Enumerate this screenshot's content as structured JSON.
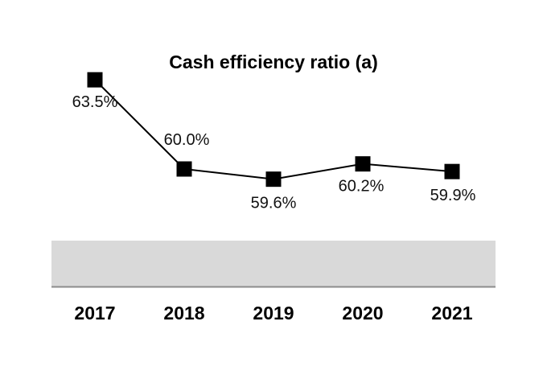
{
  "chart_data": {
    "type": "line",
    "title": "Cash efficiency ratio (a)",
    "xlabel": "",
    "ylabel": "",
    "categories": [
      "2017",
      "2018",
      "2019",
      "2020",
      "2021"
    ],
    "series": [
      {
        "values": [
          63.5,
          60.0,
          59.6,
          60.2,
          59.9
        ],
        "labels": [
          "63.5%",
          "60.0%",
          "59.6%",
          "60.2%",
          "59.9%"
        ]
      }
    ],
    "ylim": [
      54.0,
      66.0
    ],
    "marker": "square",
    "grid": false,
    "legend": "none",
    "colors": {
      "line": "#000000",
      "marker": "#000000",
      "band": "#d9d9d9",
      "axis": "#8c8c8c"
    }
  }
}
